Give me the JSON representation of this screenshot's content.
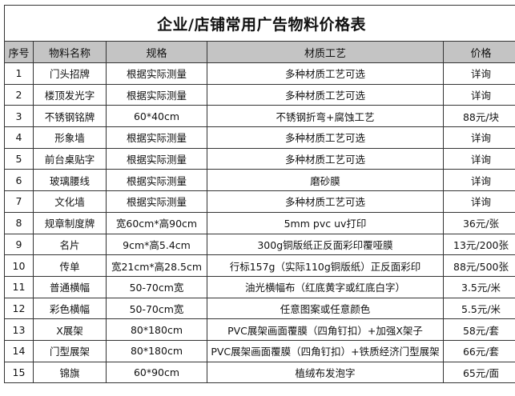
{
  "title": "企业/店铺常用广告物料价格表",
  "columns": [
    "序号",
    "物料名称",
    "规格",
    "材质工艺",
    "价格"
  ],
  "rows": [
    [
      "1",
      "门头招牌",
      "根据实际测量",
      "多种材质工艺可选",
      "详询"
    ],
    [
      "2",
      "楼顶发光字",
      "根据实际测量",
      "多种材质工艺可选",
      "详询"
    ],
    [
      "3",
      "不锈钢铭牌",
      "60*40cm",
      "不锈钢折弯+腐蚀工艺",
      "88元/块"
    ],
    [
      "4",
      "形象墙",
      "根据实际测量",
      "多种材质工艺可选",
      "详询"
    ],
    [
      "5",
      "前台桌贴字",
      "根据实际测量",
      "多种材质工艺可选",
      "详询"
    ],
    [
      "6",
      "玻璃腰线",
      "根据实际测量",
      "磨砂膜",
      "详询"
    ],
    [
      "7",
      "文化墙",
      "根据实际测量",
      "多种材质工艺可选",
      "详询"
    ],
    [
      "8",
      "规章制度牌",
      "宽60cm*高90cm",
      "5mm pvc uv打印",
      "36元/张"
    ],
    [
      "9",
      "名片",
      "9cm*高5.4cm",
      "300g铜版纸正反面彩印覆哑膜",
      "13元/200张"
    ],
    [
      "10",
      "传单",
      "宽21cm*高28.5cm",
      "行标157g（实际110g铜版纸）正反面彩印",
      "88元/500张"
    ],
    [
      "11",
      "普通横幅",
      "50-70cm宽",
      "油光横幅布（红底黄字或红底白字）",
      "3.5元/米"
    ],
    [
      "12",
      "彩色横幅",
      "50-70cm宽",
      "任意图案或任意颜色",
      "5.5元/米"
    ],
    [
      "13",
      "X展架",
      "80*180cm",
      "PVC展架画面覆膜（四角钉扣）+加强X架子",
      "58元/套"
    ],
    [
      "14",
      "门型展架",
      "80*180cm",
      "PVC展架画面覆膜（四角钉扣）+铁质经济门型展架",
      "66元/套"
    ],
    [
      "15",
      "锦旗",
      "60*90cm",
      "植绒布发泡字",
      "65元/面"
    ]
  ],
  "colors": {
    "header_bg": "#c4c4c4",
    "border": "#333333"
  }
}
